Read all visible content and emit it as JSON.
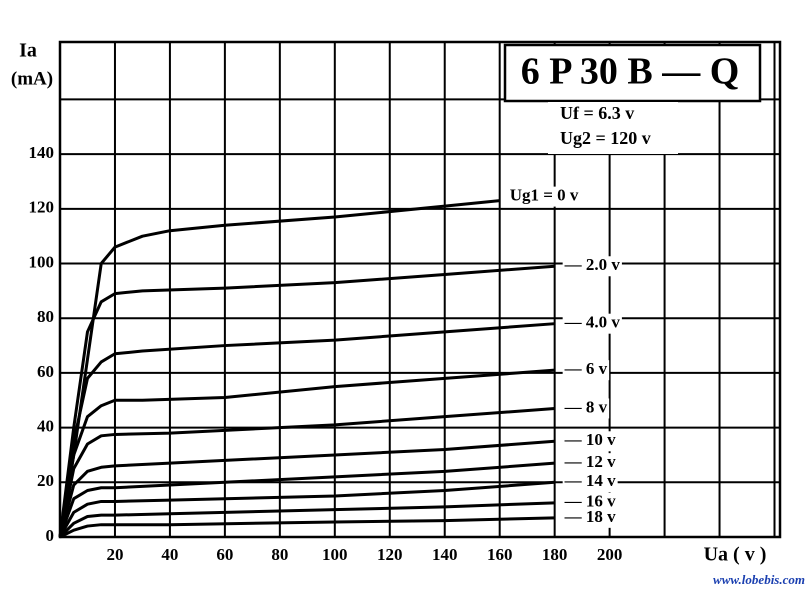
{
  "chart_data": {
    "type": "line",
    "title": "6 P 30 B — Q",
    "annotations": [
      "Uf = 6.3 v",
      "Ug2 = 120 v"
    ],
    "y_label": [
      "Ia",
      "(mA)"
    ],
    "x_label": "Ua ( v )",
    "watermark": "www.lobebis.com",
    "xlim": [
      0,
      262
    ],
    "ylim": [
      0,
      181
    ],
    "xticks": [
      20,
      40,
      60,
      80,
      100,
      120,
      140,
      160,
      180,
      200,
      {
        "value": 220,
        "label": null
      },
      {
        "value": 240,
        "label": null
      },
      {
        "value": 260,
        "label": null
      }
    ],
    "yticks": [
      0,
      20,
      40,
      60,
      80,
      100,
      120,
      140,
      {
        "value": 160,
        "label": null
      }
    ],
    "grid": true,
    "series": [
      {
        "name": "Ug1 = 0 v",
        "color": "#000000",
        "x": [
          0,
          5,
          10,
          15,
          20,
          30,
          40,
          60,
          100,
          140,
          160
        ],
        "values": [
          0,
          30,
          65,
          100,
          106,
          110,
          112,
          114,
          117,
          121,
          123
        ]
      },
      {
        "name": "— 2.0 v",
        "color": "#000000",
        "x": [
          0,
          5,
          10,
          15,
          20,
          30,
          60,
          100,
          140,
          180
        ],
        "values": [
          0,
          40,
          75,
          86,
          89,
          90,
          91,
          93,
          96,
          99
        ]
      },
      {
        "name": "— 4.0 v",
        "color": "#000000",
        "x": [
          0,
          5,
          10,
          15,
          20,
          30,
          60,
          100,
          140,
          180
        ],
        "values": [
          0,
          35,
          58,
          64,
          67,
          68,
          70,
          72,
          75,
          78
        ]
      },
      {
        "name": "— 6 v",
        "color": "#000000",
        "x": [
          0,
          5,
          10,
          15,
          20,
          30,
          60,
          100,
          140,
          180
        ],
        "values": [
          0,
          30,
          44,
          48,
          50,
          50,
          51,
          55,
          58,
          61
        ]
      },
      {
        "name": "— 8 v",
        "color": "#000000",
        "x": [
          0,
          5,
          10,
          15,
          20,
          40,
          100,
          140,
          180
        ],
        "values": [
          0,
          25,
          34,
          37,
          37.5,
          38,
          41,
          44,
          47
        ]
      },
      {
        "name": "— 10 v",
        "color": "#000000",
        "x": [
          0,
          5,
          10,
          15,
          20,
          40,
          100,
          140,
          180
        ],
        "values": [
          0,
          19,
          24,
          25.5,
          26,
          27,
          30,
          32,
          35
        ]
      },
      {
        "name": "— 12 v",
        "color": "#000000",
        "x": [
          0,
          5,
          10,
          15,
          20,
          40,
          100,
          140,
          180
        ],
        "values": [
          0,
          14,
          17,
          18,
          18,
          19,
          22,
          24,
          27
        ]
      },
      {
        "name": "— 14 v",
        "color": "#000000",
        "x": [
          0,
          5,
          10,
          15,
          20,
          40,
          100,
          140,
          180
        ],
        "values": [
          0,
          9,
          12,
          13,
          13,
          13.5,
          15,
          17,
          20
        ]
      },
      {
        "name": "— 16 v",
        "color": "#000000",
        "x": [
          0,
          5,
          10,
          15,
          20,
          40,
          100,
          140,
          180
        ],
        "values": [
          0,
          5,
          7.5,
          8,
          8,
          8.5,
          10,
          11,
          12.5
        ]
      },
      {
        "name": "— 18 v",
        "color": "#000000",
        "x": [
          0,
          5,
          10,
          15,
          20,
          40,
          100,
          140,
          180
        ],
        "values": [
          0,
          2.5,
          4,
          4.5,
          4.5,
          4.5,
          5.5,
          6,
          7
        ]
      }
    ]
  }
}
